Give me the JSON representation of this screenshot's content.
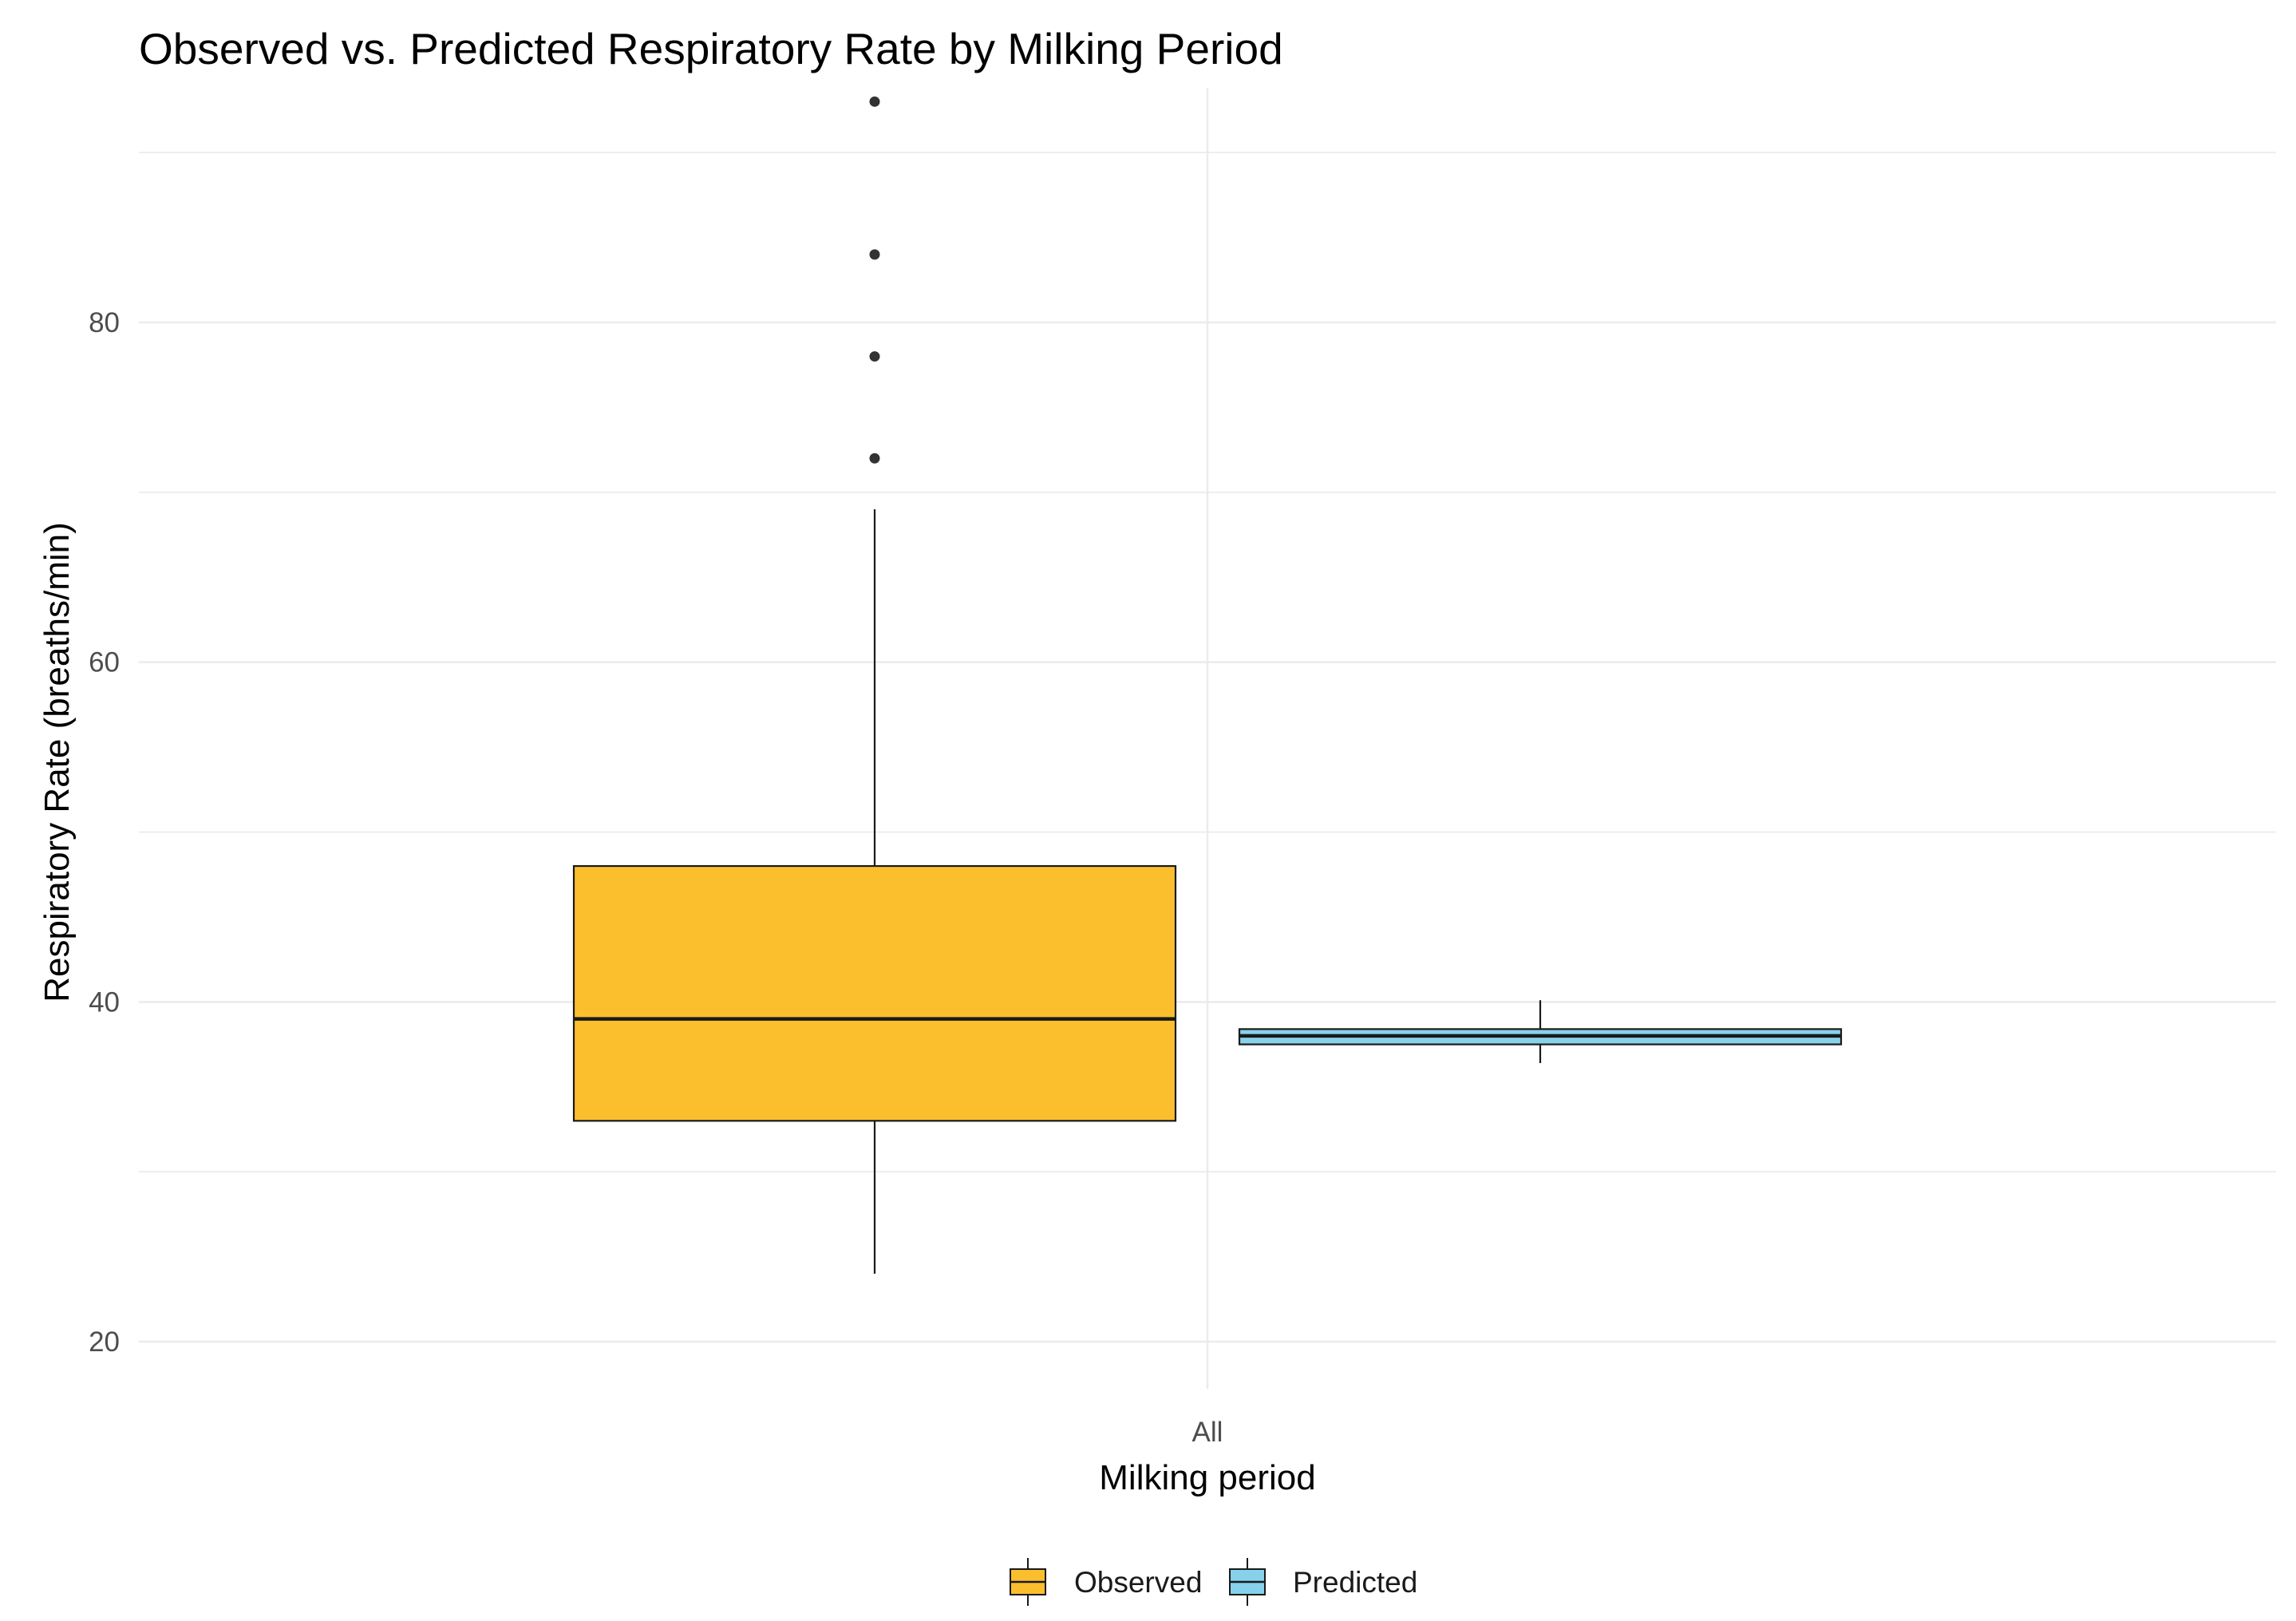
{
  "chart_data": {
    "type": "boxplot",
    "title": "Observed vs. Predicted Respiratory Rate by Milking Period",
    "xlabel": "Milking period",
    "ylabel": "Respiratory Rate (breaths/min)",
    "categories": [
      "All"
    ],
    "ylim": [
      15,
      94
    ],
    "yticks": [
      20,
      40,
      60,
      80
    ],
    "grid": true,
    "legend_position": "bottom",
    "series": [
      {
        "name": "Observed",
        "color": "#FBBF2E",
        "whisker_low": 24,
        "q1": 33,
        "median": 39,
        "q3": 48,
        "whisker_high": 69,
        "outliers": [
          72,
          78,
          84,
          93
        ]
      },
      {
        "name": "Predicted",
        "color": "#87D1EA",
        "whisker_low": 36.4,
        "q1": 37.5,
        "median": 38.0,
        "q3": 38.4,
        "whisker_high": 40.1,
        "outliers": []
      }
    ]
  }
}
